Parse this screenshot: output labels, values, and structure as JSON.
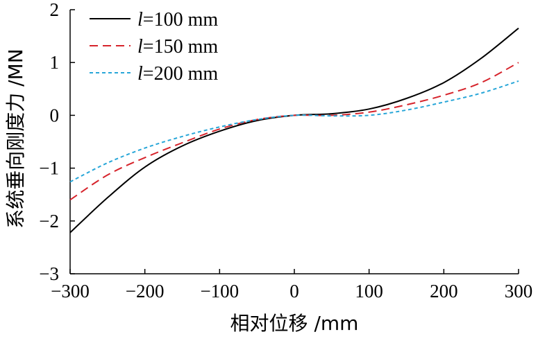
{
  "chart_data": {
    "type": "line",
    "title": "",
    "xlabel": "相对位移 /mm",
    "ylabel": "系统垂向刚度力 /MN",
    "xlim": [
      -300,
      300
    ],
    "ylim": [
      -3,
      2
    ],
    "x_ticks": [
      "−300",
      "−200",
      "−100",
      "0",
      "100",
      "200",
      "300"
    ],
    "y_ticks": [
      "2",
      "1",
      "0",
      "−1",
      "−2",
      "−3"
    ],
    "grid": false,
    "legend_position": "top-left",
    "x": [
      -300,
      -250,
      -200,
      -150,
      -100,
      -50,
      0,
      50,
      100,
      150,
      200,
      250,
      300
    ],
    "series": [
      {
        "name": "l=100 mm",
        "legend_var": "l",
        "legend_rest": "=100 mm",
        "color": "#000000",
        "dash": "solid",
        "values": [
          -2.22,
          -1.56,
          -0.98,
          -0.58,
          -0.3,
          -0.1,
          0.0,
          0.03,
          0.12,
          0.32,
          0.62,
          1.08,
          1.65
        ]
      },
      {
        "name": "l=150 mm",
        "legend_var": "l",
        "legend_rest": "=150 mm",
        "color": "#d6232b",
        "dash": "dashed",
        "values": [
          -1.6,
          -1.13,
          -0.8,
          -0.52,
          -0.26,
          -0.08,
          0.0,
          0.0,
          0.06,
          0.2,
          0.38,
          0.62,
          1.0
        ]
      },
      {
        "name": "l=200 mm",
        "legend_var": "l",
        "legend_rest": "=200 mm",
        "color": "#27a6d8",
        "dash": "dotted",
        "values": [
          -1.26,
          -0.9,
          -0.62,
          -0.4,
          -0.22,
          -0.08,
          0.0,
          -0.01,
          0.0,
          0.1,
          0.25,
          0.42,
          0.65
        ]
      }
    ]
  }
}
